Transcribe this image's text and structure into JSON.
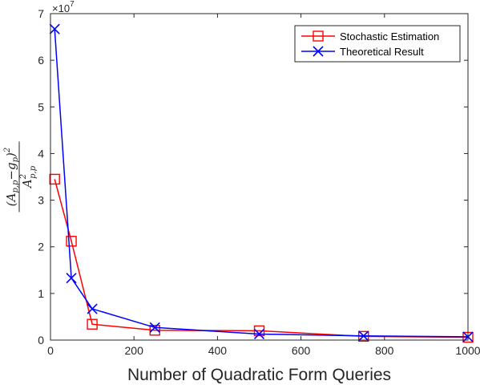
{
  "chart_data": {
    "type": "line",
    "title": "",
    "xlabel": "Number of Quadratic Form Queries",
    "ylabel": "(A_{p,p} − g_p)^2 / A_{p,p}^2",
    "ylabel_parts": {
      "numerator": "(A",
      "numerator_sub": "p,p",
      "numerator_mid": "−g",
      "numerator_sub2": "p",
      "numerator_close": ")",
      "numerator_sup": "2",
      "denominator": "A",
      "denominator_sup": "2",
      "denominator_sub": "p,p"
    },
    "xlim": [
      0,
      1000
    ],
    "ylim": [
      0,
      7
    ],
    "y_multiplier": "×10",
    "y_multiplier_exp": "7",
    "xticks": [
      0,
      200,
      400,
      600,
      800,
      1000
    ],
    "yticks": [
      0,
      1,
      2,
      3,
      4,
      5,
      6,
      7
    ],
    "grid": false,
    "legend_position": "top-right",
    "series": [
      {
        "name": "Stochastic Estimation",
        "color": "#ff0000",
        "marker": "square",
        "x": [
          10,
          50,
          100,
          250,
          500,
          750,
          1000
        ],
        "y": [
          3.45,
          2.12,
          0.34,
          0.21,
          0.2,
          0.08,
          0.06
        ]
      },
      {
        "name": "Theoretical Result",
        "color": "#0000ff",
        "marker": "x",
        "x": [
          10,
          50,
          100,
          250,
          500,
          750,
          1000
        ],
        "y": [
          6.67,
          1.33,
          0.67,
          0.27,
          0.13,
          0.09,
          0.07
        ]
      }
    ]
  }
}
